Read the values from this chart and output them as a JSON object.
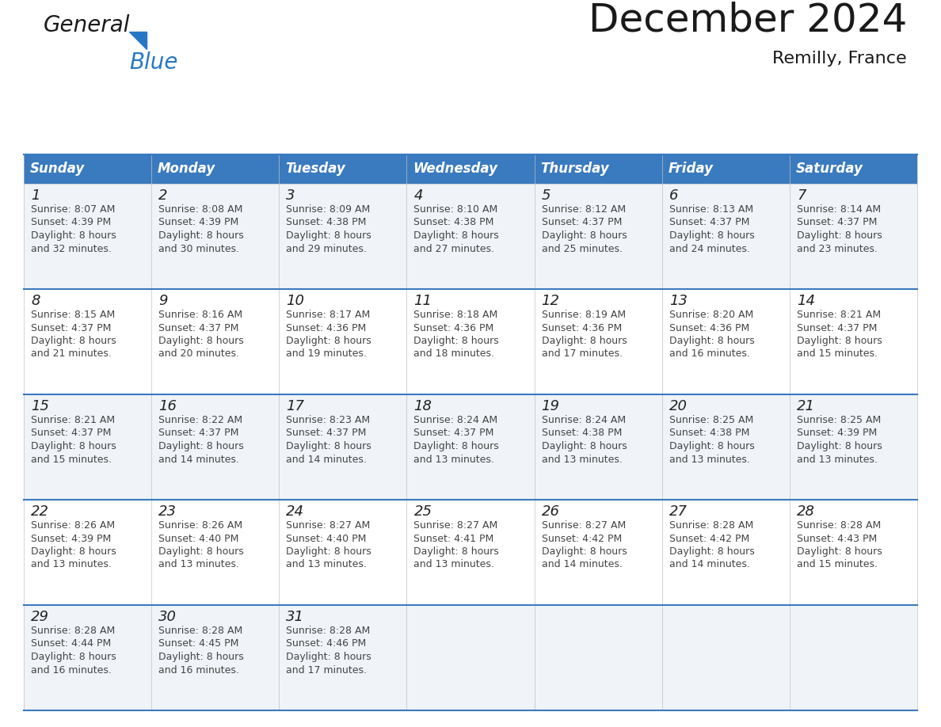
{
  "title": "December 2024",
  "subtitle": "Remilly, France",
  "header_color": "#3a7abf",
  "header_text_color": "#ffffff",
  "day_names": [
    "Sunday",
    "Monday",
    "Tuesday",
    "Wednesday",
    "Thursday",
    "Friday",
    "Saturday"
  ],
  "row_bg_even": "#f0f4f8",
  "row_bg_odd": "#ffffff",
  "separator_color": "#3a7abf",
  "text_color": "#444444",
  "day_num_color": "#222222",
  "logo_general_color": "#1a1a1a",
  "logo_blue_color": "#2778c4",
  "title_color": "#1a1a1a",
  "subtitle_color": "#1a1a1a",
  "calendar_data": [
    [
      {
        "day": 1,
        "sunrise": "8:07 AM",
        "sunset": "4:39 PM",
        "daylight_min": "32"
      },
      {
        "day": 2,
        "sunrise": "8:08 AM",
        "sunset": "4:39 PM",
        "daylight_min": "30"
      },
      {
        "day": 3,
        "sunrise": "8:09 AM",
        "sunset": "4:38 PM",
        "daylight_min": "29"
      },
      {
        "day": 4,
        "sunrise": "8:10 AM",
        "sunset": "4:38 PM",
        "daylight_min": "27"
      },
      {
        "day": 5,
        "sunrise": "8:12 AM",
        "sunset": "4:37 PM",
        "daylight_min": "25"
      },
      {
        "day": 6,
        "sunrise": "8:13 AM",
        "sunset": "4:37 PM",
        "daylight_min": "24"
      },
      {
        "day": 7,
        "sunrise": "8:14 AM",
        "sunset": "4:37 PM",
        "daylight_min": "23"
      }
    ],
    [
      {
        "day": 8,
        "sunrise": "8:15 AM",
        "sunset": "4:37 PM",
        "daylight_min": "21"
      },
      {
        "day": 9,
        "sunrise": "8:16 AM",
        "sunset": "4:37 PM",
        "daylight_min": "20"
      },
      {
        "day": 10,
        "sunrise": "8:17 AM",
        "sunset": "4:36 PM",
        "daylight_min": "19"
      },
      {
        "day": 11,
        "sunrise": "8:18 AM",
        "sunset": "4:36 PM",
        "daylight_min": "18"
      },
      {
        "day": 12,
        "sunrise": "8:19 AM",
        "sunset": "4:36 PM",
        "daylight_min": "17"
      },
      {
        "day": 13,
        "sunrise": "8:20 AM",
        "sunset": "4:36 PM",
        "daylight_min": "16"
      },
      {
        "day": 14,
        "sunrise": "8:21 AM",
        "sunset": "4:37 PM",
        "daylight_min": "15"
      }
    ],
    [
      {
        "day": 15,
        "sunrise": "8:21 AM",
        "sunset": "4:37 PM",
        "daylight_min": "15"
      },
      {
        "day": 16,
        "sunrise": "8:22 AM",
        "sunset": "4:37 PM",
        "daylight_min": "14"
      },
      {
        "day": 17,
        "sunrise": "8:23 AM",
        "sunset": "4:37 PM",
        "daylight_min": "14"
      },
      {
        "day": 18,
        "sunrise": "8:24 AM",
        "sunset": "4:37 PM",
        "daylight_min": "13"
      },
      {
        "day": 19,
        "sunrise": "8:24 AM",
        "sunset": "4:38 PM",
        "daylight_min": "13"
      },
      {
        "day": 20,
        "sunrise": "8:25 AM",
        "sunset": "4:38 PM",
        "daylight_min": "13"
      },
      {
        "day": 21,
        "sunrise": "8:25 AM",
        "sunset": "4:39 PM",
        "daylight_min": "13"
      }
    ],
    [
      {
        "day": 22,
        "sunrise": "8:26 AM",
        "sunset": "4:39 PM",
        "daylight_min": "13"
      },
      {
        "day": 23,
        "sunrise": "8:26 AM",
        "sunset": "4:40 PM",
        "daylight_min": "13"
      },
      {
        "day": 24,
        "sunrise": "8:27 AM",
        "sunset": "4:40 PM",
        "daylight_min": "13"
      },
      {
        "day": 25,
        "sunrise": "8:27 AM",
        "sunset": "4:41 PM",
        "daylight_min": "13"
      },
      {
        "day": 26,
        "sunrise": "8:27 AM",
        "sunset": "4:42 PM",
        "daylight_min": "14"
      },
      {
        "day": 27,
        "sunrise": "8:28 AM",
        "sunset": "4:42 PM",
        "daylight_min": "14"
      },
      {
        "day": 28,
        "sunrise": "8:28 AM",
        "sunset": "4:43 PM",
        "daylight_min": "15"
      }
    ],
    [
      {
        "day": 29,
        "sunrise": "8:28 AM",
        "sunset": "4:44 PM",
        "daylight_min": "16"
      },
      {
        "day": 30,
        "sunrise": "8:28 AM",
        "sunset": "4:45 PM",
        "daylight_min": "16"
      },
      {
        "day": 31,
        "sunrise": "8:28 AM",
        "sunset": "4:46 PM",
        "daylight_min": "17"
      },
      null,
      null,
      null,
      null
    ]
  ]
}
